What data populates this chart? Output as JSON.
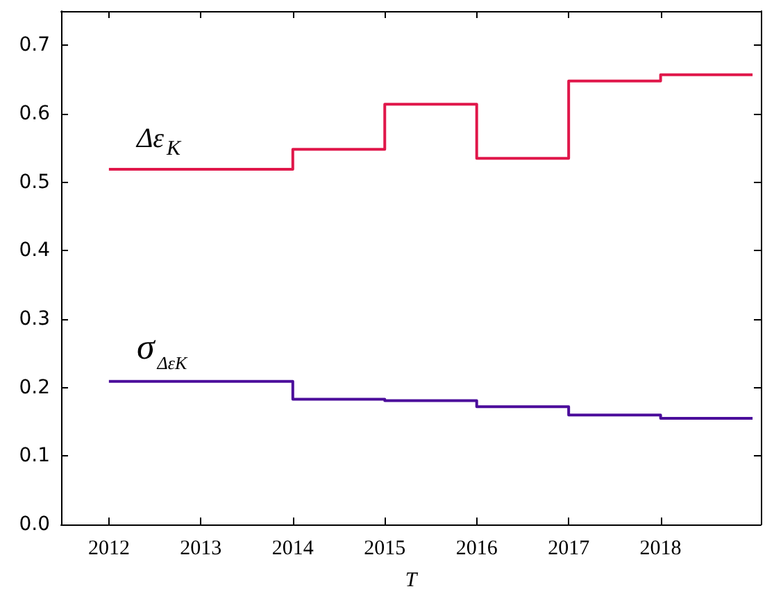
{
  "chart_data": {
    "type": "step",
    "xlabel": "T",
    "categories": [
      "2012",
      "2013",
      "2014",
      "2015",
      "2016",
      "2017",
      "2018",
      null
    ],
    "series": [
      {
        "name": "Δε$_{K}$",
        "color": "#e0174a",
        "values": [
          0.519,
          0.519,
          0.548,
          0.614,
          0.535,
          0.648,
          0.657,
          0.657
        ]
      },
      {
        "name": "σ$_{ΔεK}$",
        "color": "#4b0c9b",
        "values": [
          0.209,
          0.209,
          0.183,
          0.181,
          0.172,
          0.16,
          0.155,
          0.155
        ]
      }
    ],
    "ylim": [
      0,
      0.75
    ],
    "yticks": [
      {
        "value": 0,
        "label": "0.0"
      },
      {
        "value": 0.1,
        "label": "0.1"
      },
      {
        "value": 0.2,
        "label": "0.2"
      },
      {
        "value": 0.3,
        "label": "0.3"
      },
      {
        "value": 0.4,
        "label": "0.4"
      },
      {
        "value": 0.5,
        "label": "0.5"
      },
      {
        "value": 0.6,
        "label": "0.6"
      },
      {
        "value": 0.7,
        "label": "0.7"
      }
    ],
    "grid": false,
    "marker": "none",
    "line_style": "solid"
  }
}
